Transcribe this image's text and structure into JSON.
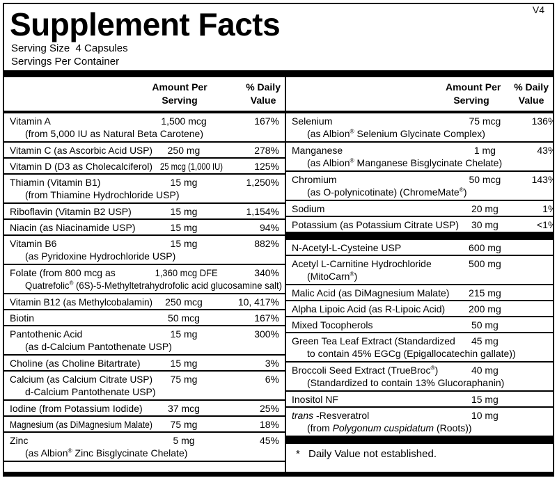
{
  "version_tag": "V4",
  "header": {
    "title": "Supplement Facts",
    "serving_size": "Serving Size  4 Capsules",
    "servings_per_container": "Servings Per Container"
  },
  "column_headers": {
    "amount": "Amount Per\nServing",
    "daily_value": "% Daily\nValue"
  },
  "left_column": {
    "rows": [
      {
        "name": "Vitamin A",
        "amount": "1,500 mcg",
        "daily_value": "167%",
        "sub": "(from 5,000 IU as Natural Beta Carotene)"
      },
      {
        "name": "Vitamin C (as Ascorbic Acid USP)",
        "amount": "250 mg",
        "daily_value": "278%"
      },
      {
        "name": "Vitamin D (D3 as Cholecalciferol)",
        "amount": "25 mcg (1,000 IU)",
        "daily_value": "125%"
      },
      {
        "name": "Thiamin (Vitamin B1)",
        "amount": "15 mg",
        "daily_value": "1,250%",
        "sub": "(from Thiamine Hydrochloride USP)"
      },
      {
        "name": "Riboflavin (Vitamin B2 USP)",
        "amount": "15 mg",
        "daily_value": "1,154%"
      },
      {
        "name": "Niacin (as Niacinamide USP)",
        "amount": "15 mg",
        "daily_value": "94%"
      },
      {
        "name": "Vitamin B6",
        "amount": "15 mg",
        "daily_value": "882%",
        "sub": "(as Pyridoxine Hydrochloride USP)"
      },
      {
        "name": "Folate (from 800 mcg as",
        "amount": "1,360 mcg DFE",
        "daily_value": "340%",
        "sub": "Quatrefolic® (6S)-5-Methyltetrahydrofolic acid glucosamine salt)"
      },
      {
        "name": "Vitamin B12 (as Methylcobalamin)",
        "amount": "250 mcg",
        "daily_value": "10, 417%"
      },
      {
        "name": "Biotin",
        "amount": "50 mcg",
        "daily_value": "167%"
      },
      {
        "name": "Pantothenic Acid",
        "amount": "15 mg",
        "daily_value": "300%",
        "sub": "(as d-Calcium Pantothenate USP)"
      },
      {
        "name": "Choline (as Choline Bitartrate)",
        "amount": "15 mg",
        "daily_value": "3%"
      },
      {
        "name": "Calcium (as Calcium Citrate USP)",
        "amount": "75 mg",
        "daily_value": "6%",
        "sub": "d-Calcium Pantothenate USP)"
      },
      {
        "name": "Iodine (from Potassium Iodide)",
        "amount": "37 mcg",
        "daily_value": "25%"
      },
      {
        "name": "Magnesium (as DiMagnesium Malate)",
        "amount": "75 mg",
        "daily_value": "18%"
      },
      {
        "name": "Zinc",
        "amount": "5 mg",
        "daily_value": "45%",
        "sub": "(as Albion® Zinc Bisglycinate Chelate)"
      }
    ]
  },
  "right_column": {
    "sections": [
      {
        "rows": [
          {
            "name": "Selenium",
            "amount": "75 mcg",
            "daily_value": "136%",
            "sub": "(as Albion® Selenium Glycinate Complex)"
          },
          {
            "name": "Manganese",
            "amount": "1 mg",
            "daily_value": "43%",
            "sub": "(as Albion® Manganese Bisglycinate Chelate)"
          },
          {
            "name": "Chromium",
            "amount": "50 mcg",
            "daily_value": "143%",
            "sub": "(as O-polynicotinate) (ChromeMate®)"
          },
          {
            "name": "Sodium",
            "amount": "20 mg",
            "daily_value": "1%"
          },
          {
            "name": "Potassium (as Potassium Citrate USP)",
            "amount": "30 mg",
            "daily_value": "<1%"
          }
        ]
      },
      {
        "rows": [
          {
            "name": "N-Acetyl-L-Cysteine USP",
            "amount": "600 mg",
            "daily_value": "*"
          },
          {
            "name": "Acetyl L-Carnitine Hydrochloride",
            "amount": "500 mg",
            "daily_value": "*",
            "sub": "(MitoCarn®)"
          },
          {
            "name": "Malic Acid (as DiMagnesium Malate)",
            "amount": "215 mg",
            "daily_value": "*"
          },
          {
            "name": "Alpha Lipoic Acid (as R-Lipoic Acid)",
            "amount": "200 mg",
            "daily_value": "*"
          },
          {
            "name": "Mixed Tocopherols",
            "amount": "50 mg",
            "daily_value": "*"
          },
          {
            "name": "Green Tea Leaf Extract (Standardized",
            "amount": "45 mg",
            "daily_value": "*",
            "sub": "to contain 45% EGCg (Epigallocatechin gallate))"
          },
          {
            "name": "Broccoli Seed Extract (TrueBroc®)",
            "amount": "40 mg",
            "daily_value": "*",
            "sub": "(Standardized to contain 13% Glucoraphanin)"
          },
          {
            "name": "Inositol NF",
            "amount": "15 mg",
            "daily_value": "*"
          },
          {
            "name_parts": [
              {
                "text": "trans",
                "italic": true
              },
              {
                "text": " -Resveratrol"
              }
            ],
            "amount": "10 mg",
            "daily_value": "*",
            "sub_parts": [
              {
                "text": "(from "
              },
              {
                "text": "Polygonum cuspidatum",
                "italic": true
              },
              {
                "text": " (Roots))"
              }
            ]
          }
        ]
      }
    ],
    "footnote": {
      "symbol": "*",
      "text": "Daily Value not established."
    }
  },
  "colors": {
    "ink": "#000000",
    "paper": "#ffffff"
  }
}
